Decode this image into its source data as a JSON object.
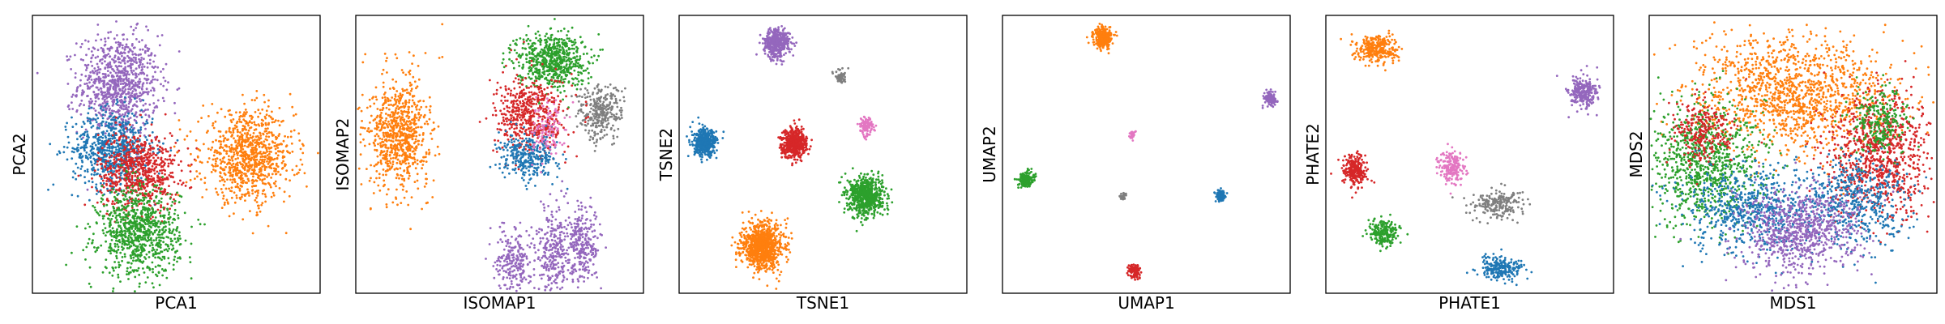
{
  "figure": {
    "series_colors": {
      "blue": "#1f77b4",
      "orange": "#ff7f0e",
      "green": "#2ca02c",
      "red": "#d62728",
      "purple": "#9467bd",
      "pink": "#e377c2",
      "gray": "#7f7f7f"
    }
  },
  "chart_data": [
    {
      "type": "scatter",
      "xlabel": "PCA1",
      "ylabel": "PCA2",
      "xlim": [
        0,
        1
      ],
      "ylim": [
        0,
        1
      ],
      "axis_ticks": "none",
      "grid": false,
      "legend": "none",
      "clusters": [
        {
          "color": "purple",
          "center": [
            0.3,
            0.75
          ],
          "spread": [
            0.07,
            0.09
          ],
          "count": 900
        },
        {
          "color": "blue",
          "center": [
            0.28,
            0.52
          ],
          "spread": [
            0.07,
            0.07
          ],
          "count": 700
        },
        {
          "color": "red",
          "center": [
            0.37,
            0.44
          ],
          "spread": [
            0.07,
            0.07
          ],
          "count": 700
        },
        {
          "color": "orange",
          "center": [
            0.75,
            0.49
          ],
          "spread": [
            0.08,
            0.08
          ],
          "count": 900
        },
        {
          "color": "green",
          "center": [
            0.37,
            0.22
          ],
          "spread": [
            0.07,
            0.08
          ],
          "count": 900
        }
      ]
    },
    {
      "type": "scatter",
      "xlabel": "ISOMAP1",
      "ylabel": "ISOMAP2",
      "xlim": [
        0,
        1
      ],
      "ylim": [
        0,
        1
      ],
      "axis_ticks": "none",
      "grid": false,
      "legend": "none",
      "clusters": [
        {
          "color": "orange",
          "center": [
            0.15,
            0.57
          ],
          "spread": [
            0.05,
            0.09
          ],
          "count": 650
        },
        {
          "color": "orange",
          "center": [
            0.12,
            0.62
          ],
          "spread": [
            0.09,
            0.16
          ],
          "count": 140
        },
        {
          "color": "green",
          "center": [
            0.68,
            0.84
          ],
          "spread": [
            0.06,
            0.05
          ],
          "count": 650
        },
        {
          "color": "gray",
          "center": [
            0.85,
            0.65
          ],
          "spread": [
            0.04,
            0.05
          ],
          "count": 300
        },
        {
          "color": "red",
          "center": [
            0.61,
            0.64
          ],
          "spread": [
            0.06,
            0.07
          ],
          "count": 550
        },
        {
          "color": "blue",
          "center": [
            0.6,
            0.49
          ],
          "spread": [
            0.05,
            0.04
          ],
          "count": 320
        },
        {
          "color": "pink",
          "center": [
            0.67,
            0.59
          ],
          "spread": [
            0.03,
            0.05
          ],
          "count": 110
        },
        {
          "color": "purple",
          "center": [
            0.55,
            0.12
          ],
          "spread": [
            0.03,
            0.06
          ],
          "count": 220
        },
        {
          "color": "purple",
          "center": [
            0.69,
            0.15
          ],
          "spread": [
            0.03,
            0.08
          ],
          "count": 280
        },
        {
          "color": "purple",
          "center": [
            0.79,
            0.18
          ],
          "spread": [
            0.03,
            0.07
          ],
          "count": 260
        }
      ]
    },
    {
      "type": "scatter",
      "xlabel": "TSNE1",
      "ylabel": "TSNE2",
      "xlim": [
        0,
        1
      ],
      "ylim": [
        0,
        1
      ],
      "axis_ticks": "none",
      "grid": false,
      "legend": "none",
      "clusters": [
        {
          "color": "purple",
          "center": [
            0.34,
            0.9
          ],
          "spread": [
            0.022,
            0.026
          ],
          "count": 450
        },
        {
          "color": "gray",
          "center": [
            0.56,
            0.78
          ],
          "spread": [
            0.01,
            0.012
          ],
          "count": 60
        },
        {
          "color": "blue",
          "center": [
            0.09,
            0.54
          ],
          "spread": [
            0.02,
            0.024
          ],
          "count": 450
        },
        {
          "color": "red",
          "center": [
            0.4,
            0.54
          ],
          "spread": [
            0.022,
            0.026
          ],
          "count": 500
        },
        {
          "color": "pink",
          "center": [
            0.65,
            0.6
          ],
          "spread": [
            0.012,
            0.015
          ],
          "count": 130
        },
        {
          "color": "green",
          "center": [
            0.65,
            0.35
          ],
          "spread": [
            0.03,
            0.034
          ],
          "count": 700
        },
        {
          "color": "orange",
          "center": [
            0.29,
            0.17
          ],
          "spread": [
            0.036,
            0.042
          ],
          "count": 900
        }
      ]
    },
    {
      "type": "scatter",
      "xlabel": "UMAP1",
      "ylabel": "UMAP2",
      "xlim": [
        0,
        1
      ],
      "ylim": [
        0,
        1
      ],
      "axis_ticks": "none",
      "grid": false,
      "legend": "none",
      "clusters": [
        {
          "color": "orange",
          "center": [
            0.35,
            0.92
          ],
          "spread": [
            0.016,
            0.018
          ],
          "count": 300
        },
        {
          "color": "purple",
          "center": [
            0.93,
            0.7
          ],
          "spread": [
            0.01,
            0.012
          ],
          "count": 120
        },
        {
          "color": "pink",
          "center": [
            0.45,
            0.57
          ],
          "spread": [
            0.006,
            0.007
          ],
          "count": 40
        },
        {
          "color": "green",
          "center": [
            0.08,
            0.41
          ],
          "spread": [
            0.013,
            0.014
          ],
          "count": 180
        },
        {
          "color": "gray",
          "center": [
            0.42,
            0.35
          ],
          "spread": [
            0.006,
            0.006
          ],
          "count": 30
        },
        {
          "color": "blue",
          "center": [
            0.76,
            0.35
          ],
          "spread": [
            0.009,
            0.01
          ],
          "count": 90
        },
        {
          "color": "red",
          "center": [
            0.46,
            0.08
          ],
          "spread": [
            0.01,
            0.012
          ],
          "count": 120
        }
      ]
    },
    {
      "type": "scatter",
      "xlabel": "PHATE1",
      "ylabel": "PHATE2",
      "xlim": [
        0,
        1
      ],
      "ylim": [
        0,
        1
      ],
      "axis_ticks": "none",
      "grid": false,
      "legend": "none",
      "clusters": [
        {
          "color": "orange",
          "center": [
            0.18,
            0.88
          ],
          "spread": [
            0.035,
            0.025
          ],
          "count": 300
        },
        {
          "color": "purple",
          "center": [
            0.89,
            0.72
          ],
          "spread": [
            0.025,
            0.03
          ],
          "count": 260
        },
        {
          "color": "red",
          "center": [
            0.1,
            0.44
          ],
          "spread": [
            0.022,
            0.028
          ],
          "count": 240
        },
        {
          "color": "pink",
          "center": [
            0.44,
            0.45
          ],
          "spread": [
            0.022,
            0.03
          ],
          "count": 200
        },
        {
          "color": "gray",
          "center": [
            0.6,
            0.32
          ],
          "spread": [
            0.045,
            0.025
          ],
          "count": 220
        },
        {
          "color": "green",
          "center": [
            0.2,
            0.22
          ],
          "spread": [
            0.025,
            0.025
          ],
          "count": 220
        },
        {
          "color": "blue",
          "center": [
            0.61,
            0.09
          ],
          "spread": [
            0.04,
            0.02
          ],
          "count": 240
        }
      ]
    },
    {
      "type": "scatter",
      "xlabel": "MDS1",
      "ylabel": "MDS2",
      "xlim": [
        0,
        1
      ],
      "ylim": [
        0,
        1
      ],
      "axis_ticks": "none",
      "grid": false,
      "legend": "none",
      "clusters": [
        {
          "color": "orange",
          "center": [
            0.5,
            0.72
          ],
          "spread": [
            0.17,
            0.1
          ],
          "count": 1300
        },
        {
          "color": "green",
          "center": [
            0.2,
            0.47
          ],
          "spread": [
            0.1,
            0.11
          ],
          "count": 900
        },
        {
          "color": "red",
          "center": [
            0.8,
            0.5
          ],
          "spread": [
            0.09,
            0.11
          ],
          "count": 900
        },
        {
          "color": "red",
          "center": [
            0.18,
            0.58
          ],
          "spread": [
            0.05,
            0.06
          ],
          "count": 250
        },
        {
          "color": "green",
          "center": [
            0.8,
            0.62
          ],
          "spread": [
            0.05,
            0.06
          ],
          "count": 250
        },
        {
          "color": "blue",
          "center": [
            0.35,
            0.3
          ],
          "spread": [
            0.11,
            0.08
          ],
          "count": 650
        },
        {
          "color": "blue",
          "center": [
            0.72,
            0.32
          ],
          "spread": [
            0.09,
            0.08
          ],
          "count": 500
        },
        {
          "color": "purple",
          "center": [
            0.52,
            0.22
          ],
          "spread": [
            0.1,
            0.08
          ],
          "count": 800
        }
      ]
    }
  ]
}
